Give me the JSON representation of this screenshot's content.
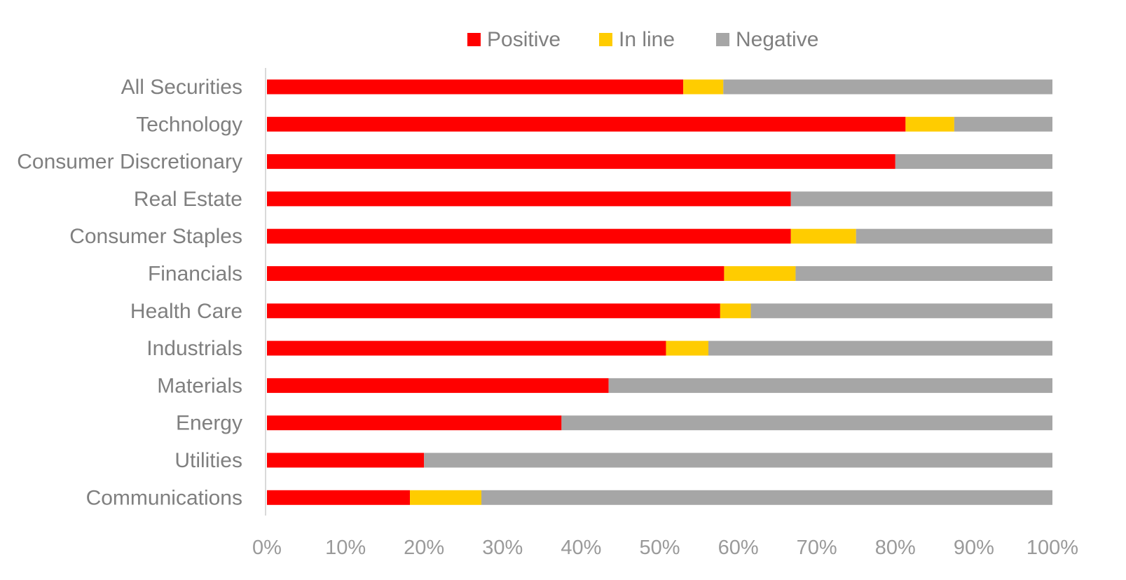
{
  "chart_data": {
    "type": "bar",
    "orientation": "horizontal",
    "stacked": "percent",
    "categories": [
      "All Securities",
      "Technology",
      "Consumer Discretionary",
      "Real Estate",
      "Consumer Staples",
      "Financials",
      "Health Care",
      "Industrials",
      "Materials",
      "Energy",
      "Utilities",
      "Communications"
    ],
    "series": [
      {
        "name": "Positive",
        "color": "#ff0000",
        "values": [
          53,
          81.3,
          80,
          66.7,
          66.7,
          58.2,
          57.7,
          50.8,
          43.5,
          37.5,
          20,
          18.2
        ]
      },
      {
        "name": "In line",
        "color": "#ffcc00",
        "values": [
          5.1,
          6.2,
          0,
          0,
          8.3,
          9.1,
          3.9,
          5.4,
          0,
          0,
          0,
          9.1
        ]
      },
      {
        "name": "Negative",
        "color": "#a6a6a6",
        "values": [
          41.9,
          12.5,
          20,
          33.3,
          25,
          32.7,
          38.4,
          43.8,
          56.5,
          62.5,
          80,
          72.7
        ]
      }
    ],
    "xlim": [
      0,
      100
    ],
    "x_ticks": [
      "0%",
      "10%",
      "20%",
      "30%",
      "40%",
      "50%",
      "60%",
      "70%",
      "80%",
      "90%",
      "100%"
    ],
    "legend_position": "top",
    "grid": false,
    "title": "",
    "xlabel": "",
    "ylabel": ""
  }
}
